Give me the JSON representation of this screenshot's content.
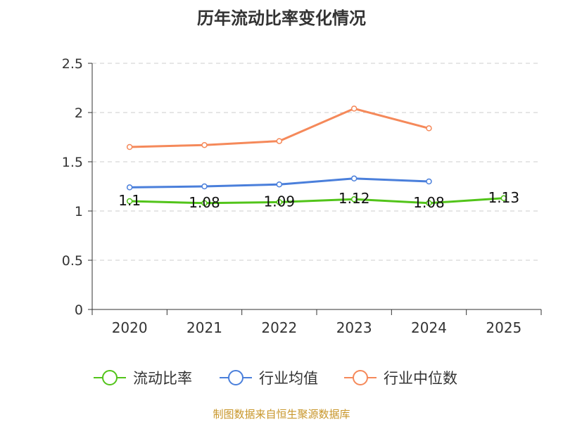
{
  "chart_data": {
    "type": "line",
    "title": "历年流动比率变化情况",
    "categories": [
      "2020",
      "2021",
      "2022",
      "2023",
      "2024",
      "2025"
    ],
    "yticks": [
      "0",
      "0.5",
      "1",
      "1.5",
      "2",
      "2.5"
    ],
    "ylim": [
      0,
      2.5
    ],
    "grid": true,
    "legend_position": "bottom",
    "series": [
      {
        "name": "流动比率",
        "color": "#52c41a",
        "values": [
          1.1,
          1.08,
          1.09,
          1.12,
          1.08,
          1.13
        ],
        "labels": [
          "1.1",
          "1.08",
          "1.09",
          "1.12",
          "1.08",
          "1.13"
        ]
      },
      {
        "name": "行业均值",
        "color": "#4a7fdb",
        "values": [
          1.24,
          1.25,
          1.27,
          1.33,
          1.3,
          null
        ]
      },
      {
        "name": "行业中位数",
        "color": "#f5895a",
        "values": [
          1.65,
          1.67,
          1.71,
          2.04,
          1.84,
          null
        ]
      }
    ],
    "source": "制图数据来自恒生聚源数据库"
  }
}
